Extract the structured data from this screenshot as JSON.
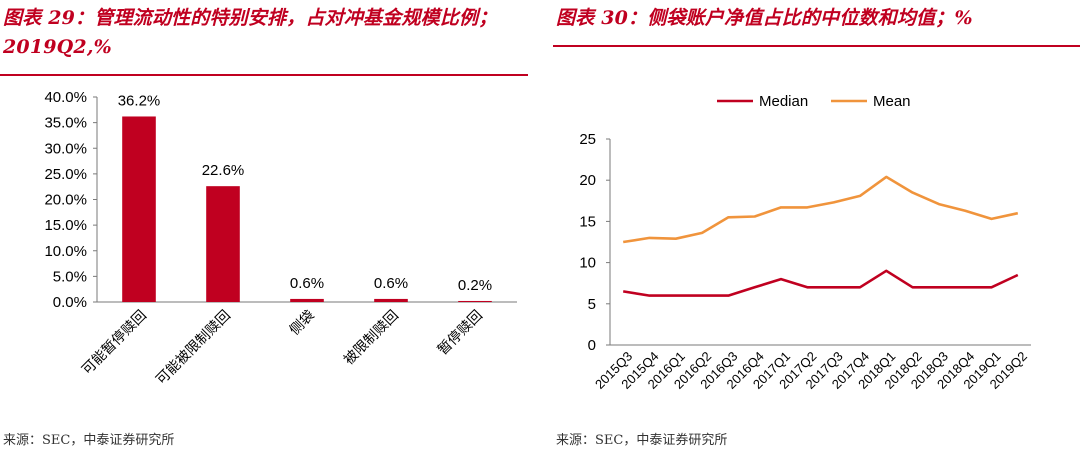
{
  "left": {
    "title": "图表 29：管理流动性的特别安排，占对冲基金规模比例；2019Q2,%",
    "source": "来源：SEC，中泰证券研究所"
  },
  "right": {
    "title": "图表 30：侧袋账户净值占比的中位数和均值；%",
    "source": "来源：SEC，中泰证券研究所"
  },
  "colors": {
    "accent": "#c00020",
    "median": "#c00020",
    "mean": "#f0943c"
  },
  "chart_data": [
    {
      "type": "bar",
      "categories": [
        "可能暂停赎回",
        "可能被限制赎回",
        "侧袋",
        "被限制赎回",
        "暂停赎回"
      ],
      "values": [
        36.2,
        22.6,
        0.6,
        0.6,
        0.2
      ],
      "data_labels": [
        "36.2%",
        "22.6%",
        "0.6%",
        "0.6%",
        "0.2%"
      ],
      "ylim": [
        0,
        40
      ],
      "yticks": [
        "0.0%",
        "5.0%",
        "10.0%",
        "15.0%",
        "20.0%",
        "25.0%",
        "30.0%",
        "35.0%",
        "40.0%"
      ],
      "grid": false
    },
    {
      "type": "line",
      "categories": [
        "2015Q3",
        "2015Q4",
        "2016Q1",
        "2016Q2",
        "2016Q3",
        "2016Q4",
        "2017Q1",
        "2017Q2",
        "2017Q3",
        "2017Q4",
        "2018Q1",
        "2018Q2",
        "2018Q3",
        "2018Q4",
        "2019Q1",
        "2019Q2"
      ],
      "series": [
        {
          "name": "Median",
          "values": [
            6.5,
            6,
            6,
            6,
            6,
            7,
            8,
            7,
            7,
            7,
            9,
            7,
            7,
            7,
            7,
            8.5
          ]
        },
        {
          "name": "Mean",
          "values": [
            12.5,
            13,
            12.9,
            13.6,
            15.5,
            15.6,
            16.7,
            16.7,
            17.3,
            18.1,
            20.4,
            18.5,
            17.1,
            16.3,
            15.3,
            16
          ]
        }
      ],
      "ylim": [
        0,
        25
      ],
      "yticks": [
        "0",
        "5",
        "10",
        "15",
        "20",
        "25"
      ],
      "legend": "top",
      "grid": false
    }
  ]
}
